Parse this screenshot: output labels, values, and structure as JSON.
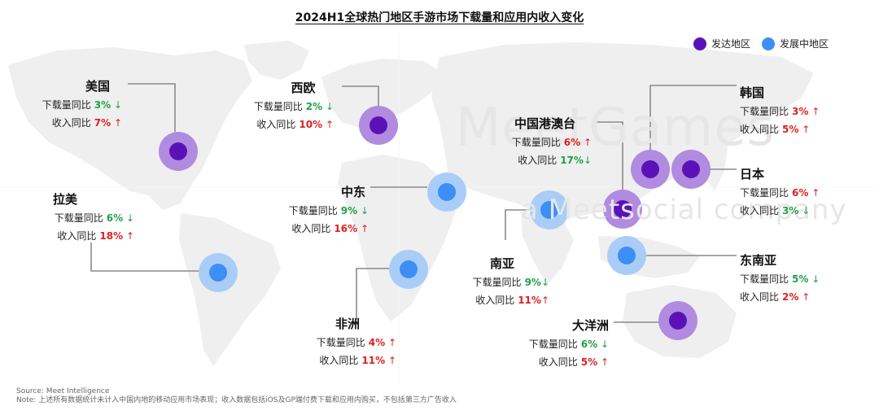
{
  "title": "2024H1全球热门地区手游市场下载量和应用内收入变化",
  "legend": [
    {
      "label": "发达地区",
      "color": "#5a12b8"
    },
    {
      "label": "发展中地区",
      "color": "#3d8ef5"
    }
  ],
  "watermark": {
    "line1": "MeetGames",
    "line2": "a Meetsocial company"
  },
  "colors": {
    "up": "#e02020",
    "down": "#21a047",
    "developed_ring": "#b08be0",
    "developing_ring": "#a9cdf7"
  },
  "regions": {
    "us": {
      "name": "美国",
      "type": "developed",
      "download_label": "下载量同比",
      "download_value": "3%",
      "download_arrow": "↓",
      "download_trend": "down",
      "revenue_label": "收入同比",
      "revenue_value": "7%",
      "revenue_arrow": "↑",
      "revenue_trend": "up"
    },
    "weu": {
      "name": "西欧",
      "type": "developed",
      "download_label": "下载量同比",
      "download_value": "2%",
      "download_arrow": "↓",
      "download_trend": "down",
      "revenue_label": "收入同比",
      "revenue_value": "10%",
      "revenue_arrow": "↑",
      "revenue_trend": "up"
    },
    "latam": {
      "name": "拉美",
      "type": "developing",
      "download_label": "下载量同比",
      "download_value": "6%",
      "download_arrow": "↓",
      "download_trend": "down",
      "revenue_label": "收入同比",
      "revenue_value": "18%",
      "revenue_arrow": "↑",
      "revenue_trend": "up"
    },
    "me": {
      "name": "中东",
      "type": "developing",
      "download_label": "下载量同比",
      "download_value": "9%",
      "download_arrow": "↓",
      "download_trend": "down",
      "revenue_label": "收入同比",
      "revenue_value": "16%",
      "revenue_arrow": "↑",
      "revenue_trend": "up"
    },
    "africa": {
      "name": "非洲",
      "type": "developing",
      "download_label": "下载量同比",
      "download_value": "4%",
      "download_arrow": "↑",
      "download_trend": "up",
      "revenue_label": "收入同比",
      "revenue_value": "11%",
      "revenue_arrow": "↑",
      "revenue_trend": "up"
    },
    "hmt": {
      "name": "中国港澳台",
      "type": "developed",
      "download_label": "下载量同比",
      "download_value": "6%",
      "download_arrow": "↑",
      "download_trend": "up",
      "revenue_label": "收入同比",
      "revenue_value": "17%",
      "revenue_arrow": "↓",
      "revenue_trend": "down"
    },
    "sa": {
      "name": "南亚",
      "type": "developing",
      "download_label": "下载量同比",
      "download_value": "9%",
      "download_arrow": "↓",
      "download_trend": "down",
      "revenue_label": "收入同比",
      "revenue_value": "11%",
      "revenue_arrow": "↑",
      "revenue_trend": "up"
    },
    "kr": {
      "name": "韩国",
      "type": "developed",
      "download_label": "下载量同比",
      "download_value": "3%",
      "download_arrow": "↑",
      "download_trend": "up",
      "revenue_label": "收入同比",
      "revenue_value": "5%",
      "revenue_arrow": "↑",
      "revenue_trend": "up"
    },
    "jp": {
      "name": "日本",
      "type": "developed",
      "download_label": "下载量同比",
      "download_value": "6%",
      "download_arrow": "↑",
      "download_trend": "up",
      "revenue_label": "收入同比",
      "revenue_value": "3%",
      "revenue_arrow": "↓",
      "revenue_trend": "down"
    },
    "sea": {
      "name": "东南亚",
      "type": "developing",
      "download_label": "下载量同比",
      "download_value": "5%",
      "download_arrow": "↓",
      "download_trend": "down",
      "revenue_label": "收入同比",
      "revenue_value": "2%",
      "revenue_arrow": "↑",
      "revenue_trend": "up"
    },
    "oce": {
      "name": "大洋洲",
      "type": "developed",
      "download_label": "下载量同比",
      "download_value": "6%",
      "download_arrow": "↓",
      "download_trend": "down",
      "revenue_label": "收入同比",
      "revenue_value": "5%",
      "revenue_arrow": "↑",
      "revenue_trend": "up"
    }
  },
  "footer": {
    "source": "Source: Meet Intelligence",
    "note": "Note: 上述所有数据统计未计入中国内地的移动应用市场表现；收入数据包括iOS及GP端付费下载和应用内购买，不包括第三方广告收入"
  }
}
